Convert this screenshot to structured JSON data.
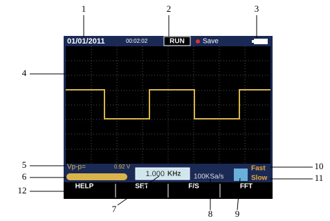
{
  "callouts": [
    "1",
    "2",
    "3",
    "4",
    "5",
    "6",
    "7",
    "8",
    "9",
    "10",
    "11",
    "12"
  ],
  "status_bar": {
    "date": "01/01/2011",
    "time": "00:02:02",
    "state": "RUN",
    "save": "Save"
  },
  "readouts": {
    "vpp_label": "Vp-p=",
    "vpp_value": "0.92 V",
    "frequency": "1.000",
    "frequency_unit": "KHz",
    "sample_rate": "100KSa/s",
    "fast": "Fast",
    "slow": "Slow"
  },
  "buttons": [
    "HELP",
    "SET",
    "F/S",
    "FFT"
  ]
}
